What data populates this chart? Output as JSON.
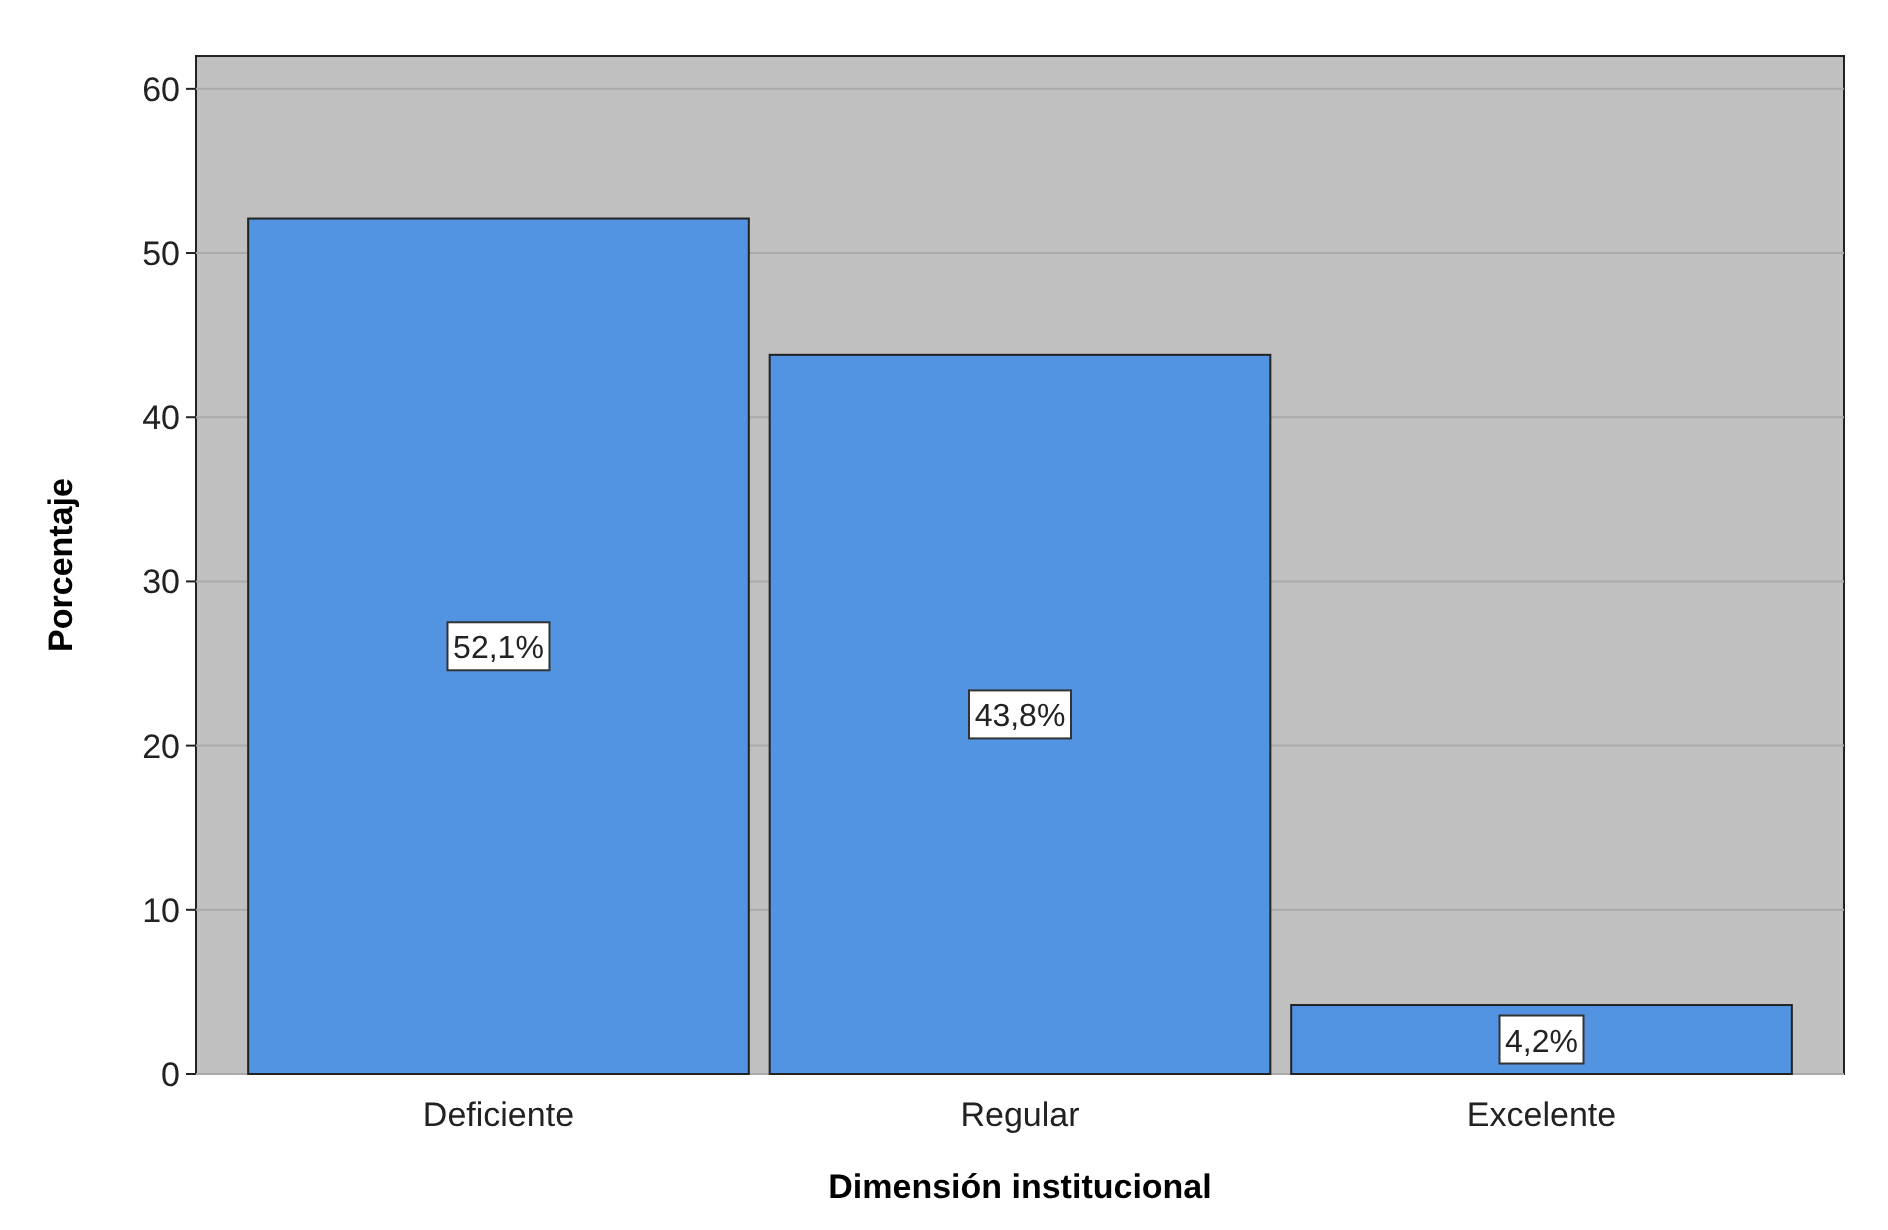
{
  "chart_data": {
    "type": "bar",
    "xlabel": "Dimensión institucional",
    "ylabel": "Porcentaje",
    "categories": [
      "Deficiente",
      "Regular",
      "Excelente"
    ],
    "values": [
      52.1,
      43.8,
      4.2
    ],
    "color": "#5294e2",
    "value_labels": [
      "52,1%",
      "43,8%",
      "4,2%"
    ],
    "ylim": [
      0,
      62
    ],
    "yticks": [
      0,
      10,
      20,
      30,
      40,
      50,
      60
    ],
    "grid": "y"
  }
}
